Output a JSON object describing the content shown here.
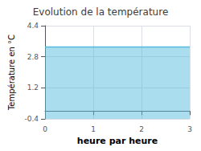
{
  "chart_data": {
    "type": "area",
    "title": "Evolution de la température",
    "xlabel": "heure par heure",
    "ylabel": "Température en °C",
    "x": [
      0,
      3
    ],
    "series": [
      {
        "values": [
          3.3,
          3.3
        ],
        "color": "#55bbdd"
      }
    ],
    "xlim": [
      0,
      3
    ],
    "ylim": [
      -0.4,
      4.4
    ],
    "xticks": [
      0,
      1,
      2,
      3
    ],
    "yticks": [
      -0.4,
      1.2,
      2.8,
      4.4
    ],
    "grid": true
  }
}
